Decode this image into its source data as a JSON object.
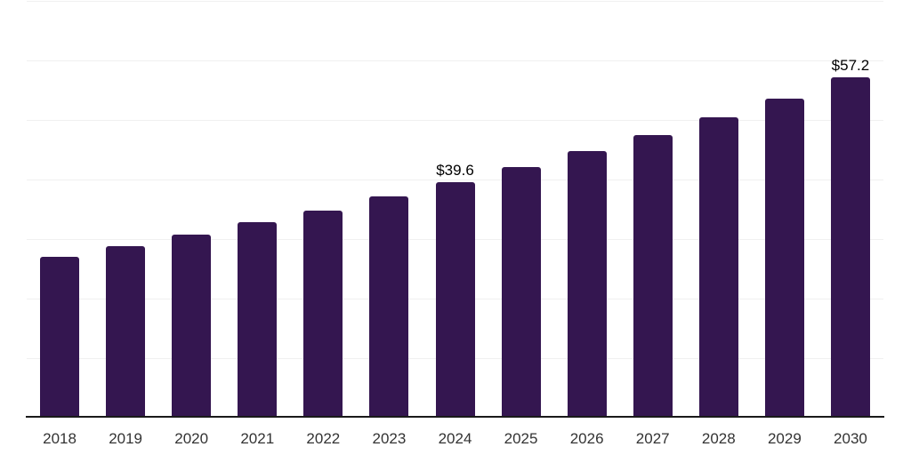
{
  "chart_data": {
    "type": "bar",
    "categories": [
      "2018",
      "2019",
      "2020",
      "2021",
      "2022",
      "2023",
      "2024",
      "2025",
      "2026",
      "2027",
      "2028",
      "2029",
      "2030"
    ],
    "values": [
      27.0,
      28.8,
      30.7,
      32.8,
      34.8,
      37.2,
      39.6,
      42.1,
      44.8,
      47.5,
      50.4,
      53.6,
      57.2
    ],
    "point_labels": [
      {
        "category": "2024",
        "text": "$39.6"
      },
      {
        "category": "2030",
        "text": "$57.2"
      }
    ],
    "title": "",
    "xlabel": "",
    "ylabel": "",
    "ylim": [
      0,
      70
    ],
    "gridline_step": 10,
    "grid": true,
    "legend": "none",
    "colors": {
      "bar": "#341650",
      "gridline": "#f0f0f0",
      "axis_line": "#1a1a1a",
      "tick_label": "#333333",
      "data_label": "#000000",
      "background": "#ffffff"
    }
  }
}
